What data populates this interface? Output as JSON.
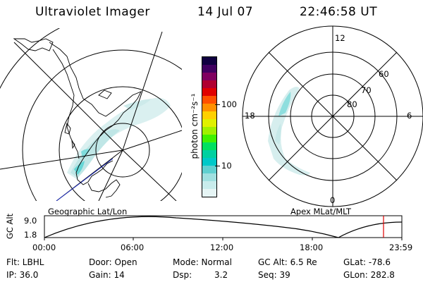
{
  "header": {
    "title": "Ultraviolet Imager",
    "date": "14 Jul 07",
    "time": "22:46:58 UT"
  },
  "geo_panel": {
    "caption": "Geographic Lat/Lon"
  },
  "polar_panel": {
    "caption": "Apex MLat/MLT",
    "mlt_labels": {
      "top": "12",
      "right": "6",
      "bottom": "0",
      "left": "18"
    },
    "lat_labels": [
      "60",
      "70",
      "80"
    ]
  },
  "colorbar": {
    "unit_label": "photon cm⁻²s⁻¹",
    "ticks": [
      "100",
      "10"
    ],
    "colors": [
      "#e6f5f5",
      "#c8ecec",
      "#a0e0e0",
      "#60d0d0",
      "#00c8c8",
      "#00d0a0",
      "#00e060",
      "#40f000",
      "#a0f000",
      "#e0f000",
      "#ffd000",
      "#ff9000",
      "#ff5000",
      "#e00000",
      "#b00030",
      "#800060",
      "#400060",
      "#100040"
    ]
  },
  "orbit": {
    "ylabel": "GC Alt",
    "ytick_top": "9.0",
    "ytick_bottom": "1.8",
    "xticks": [
      "00:00",
      "06:00",
      "12:00",
      "18:00",
      "23:59"
    ]
  },
  "info": {
    "flt": "Flt: LBHL",
    "ip": "IP: 36.0",
    "door": "Door: Open",
    "gain": "Gain: 14",
    "mode": "Mode: Normal",
    "dsp_label": "Dsp:",
    "dsp_value": "3.2",
    "gc_alt": "GC Alt: 6.5 Re",
    "seq": "Seq: 39",
    "glat": "GLat: -78.6",
    "glon": "GLon: 282.8"
  }
}
